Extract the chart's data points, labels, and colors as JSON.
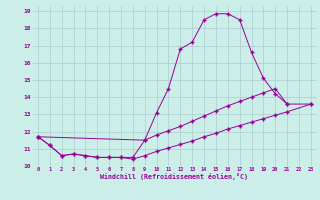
{
  "title": "",
  "xlabel": "Windchill (Refroidissement éolien,°C)",
  "background_color": "#cceee8",
  "grid_color": "#aacccc",
  "line_color": "#990099",
  "xlim": [
    -0.5,
    23.5
  ],
  "ylim": [
    10.0,
    19.3
  ],
  "s1x": [
    0,
    1,
    2,
    3,
    4,
    5,
    6,
    7,
    8,
    9,
    10,
    11,
    12,
    13,
    14,
    15,
    16,
    17,
    18,
    19,
    20,
    21
  ],
  "s1y": [
    11.7,
    11.2,
    10.6,
    10.7,
    10.6,
    10.5,
    10.5,
    10.5,
    10.5,
    11.5,
    13.1,
    14.5,
    16.8,
    17.2,
    18.5,
    18.85,
    18.85,
    18.5,
    16.6,
    15.1,
    14.2,
    13.6
  ],
  "s2x": [
    0,
    1,
    2,
    3,
    4,
    5,
    6,
    7,
    8,
    9,
    10,
    11,
    12,
    13,
    14,
    15,
    16,
    17,
    18,
    19,
    20,
    21,
    23
  ],
  "s2y": [
    11.7,
    11.2,
    10.6,
    10.7,
    10.6,
    10.5,
    10.5,
    10.5,
    10.4,
    10.6,
    10.85,
    11.05,
    11.25,
    11.45,
    11.7,
    11.9,
    12.15,
    12.35,
    12.55,
    12.75,
    12.95,
    13.15,
    13.6
  ],
  "s3x": [
    0,
    9,
    10,
    11,
    12,
    13,
    14,
    15,
    16,
    17,
    18,
    19,
    20,
    21,
    23
  ],
  "s3y": [
    11.7,
    11.5,
    11.8,
    12.05,
    12.3,
    12.6,
    12.9,
    13.2,
    13.5,
    13.75,
    14.0,
    14.25,
    14.5,
    13.6,
    13.6
  ]
}
